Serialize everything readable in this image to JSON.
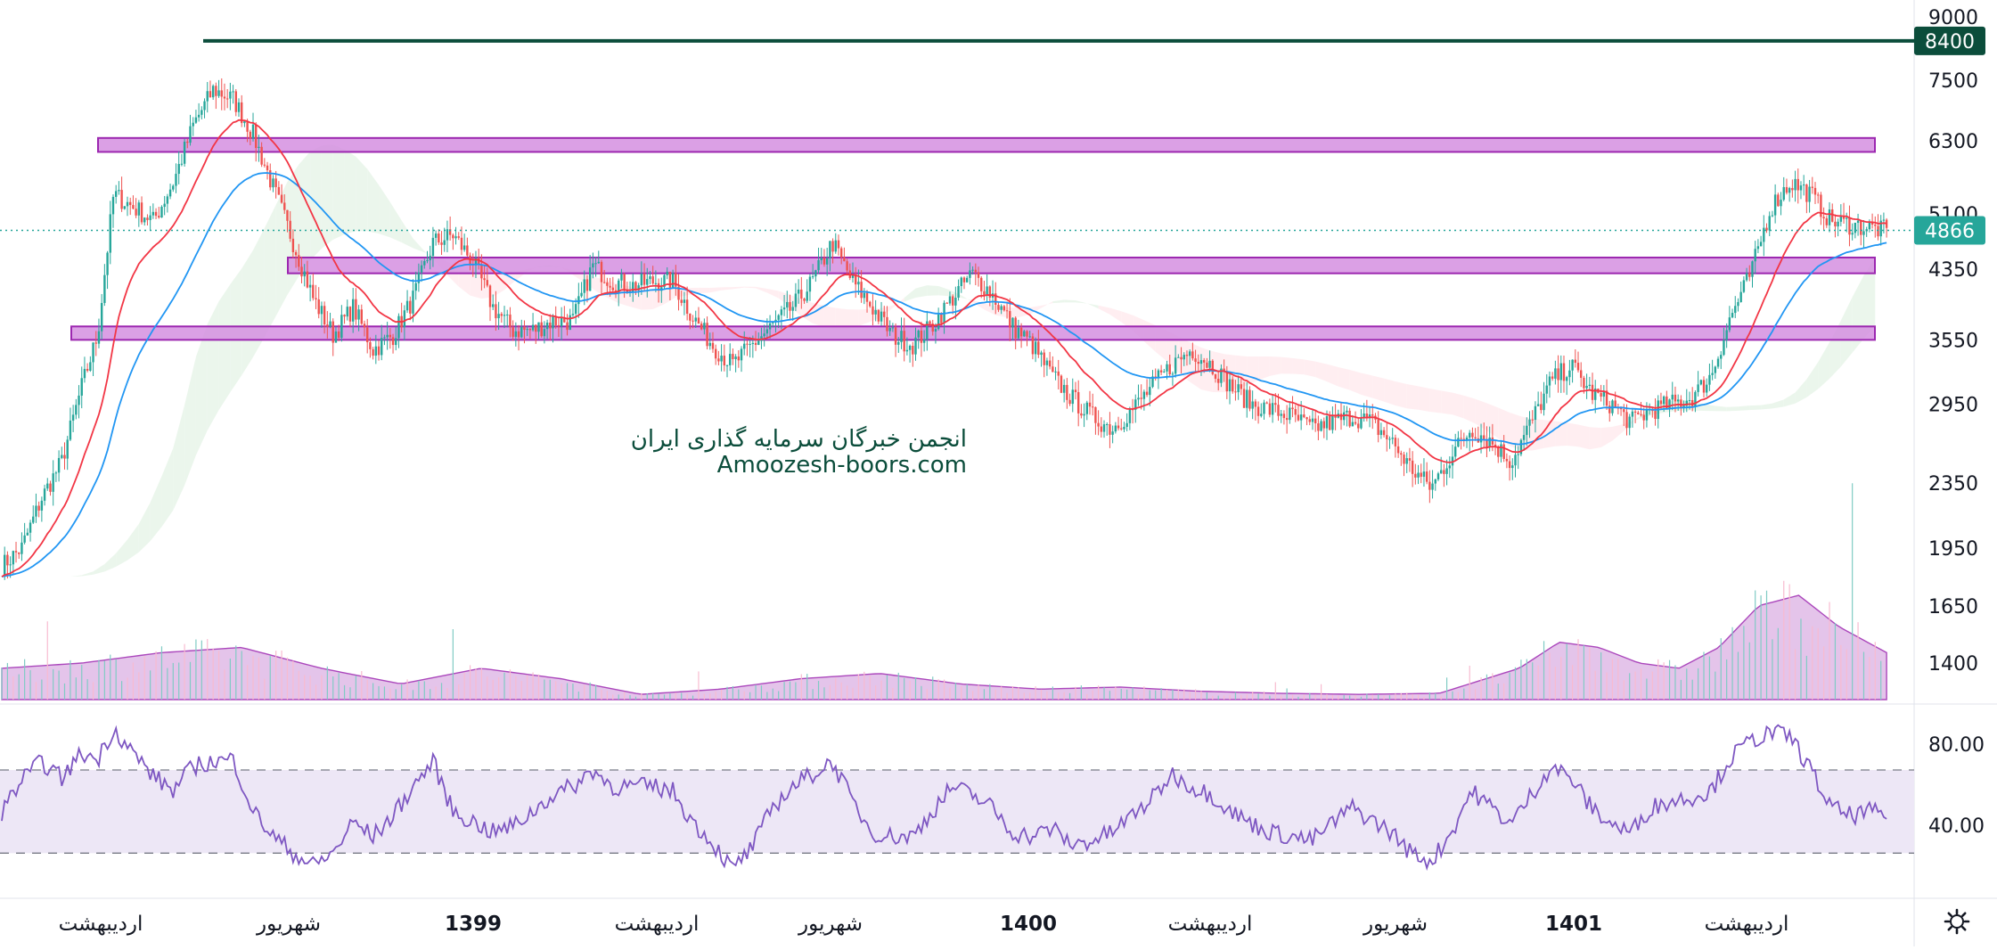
{
  "chart_data": [
    {
      "type": "candlestick",
      "ylim": [
        1250,
        9400
      ],
      "y_scale": "log",
      "y_ticks": [
        "9000",
        "7500",
        "6300",
        "5100",
        "4350",
        "3550",
        "2950",
        "2350",
        "1950",
        "1650",
        "1400"
      ],
      "x_ticks": [
        {
          "label": "اردیبهشت",
          "bold": false
        },
        {
          "label": "شهریور",
          "bold": false
        },
        {
          "label": "1399",
          "bold": true
        },
        {
          "label": "اردیبهشت",
          "bold": false
        },
        {
          "label": "شهریور",
          "bold": false
        },
        {
          "label": "1400",
          "bold": true
        },
        {
          "label": "اردیبهشت",
          "bold": false
        },
        {
          "label": "شهریور",
          "bold": false
        },
        {
          "label": "1401",
          "bold": true
        },
        {
          "label": "اردیبهشت",
          "bold": false
        }
      ],
      "last_price": "4866",
      "resistance_line": {
        "value": 8400,
        "label": "8400"
      },
      "zones": [
        {
          "low": 6100,
          "high": 6350
        },
        {
          "low": 4300,
          "high": 4500
        },
        {
          "low": 3550,
          "high": 3690
        }
      ],
      "close_path": [
        [
          0,
          1850
        ],
        [
          0.5,
          1950
        ],
        [
          1,
          2250
        ],
        [
          1.5,
          2500
        ],
        [
          2,
          3100
        ],
        [
          2.4,
          3600
        ],
        [
          2.8,
          5400
        ],
        [
          3.3,
          5200
        ],
        [
          3.8,
          5000
        ],
        [
          4.3,
          5600
        ],
        [
          4.8,
          6600
        ],
        [
          5.3,
          7300
        ],
        [
          5.8,
          7100
        ],
        [
          6.3,
          6400
        ],
        [
          6.8,
          5500
        ],
        [
          7.3,
          4700
        ],
        [
          7.8,
          4000
        ],
        [
          8.3,
          3600
        ],
        [
          8.8,
          3900
        ],
        [
          9.3,
          3450
        ],
        [
          9.8,
          3600
        ],
        [
          10.3,
          4000
        ],
        [
          10.8,
          4700
        ],
        [
          11.3,
          4800
        ],
        [
          11.8,
          4450
        ],
        [
          12.3,
          3900
        ],
        [
          12.8,
          3650
        ],
        [
          13.3,
          3650
        ],
        [
          13.8,
          3750
        ],
        [
          14.3,
          3750
        ],
        [
          14.8,
          4400
        ],
        [
          15.3,
          4200
        ],
        [
          15.8,
          4150
        ],
        [
          16.3,
          4200
        ],
        [
          16.8,
          4200
        ],
        [
          17.3,
          3800
        ],
        [
          17.8,
          3500
        ],
        [
          18.3,
          3300
        ],
        [
          18.8,
          3500
        ],
        [
          19.3,
          3700
        ],
        [
          19.8,
          3900
        ],
        [
          20.3,
          4200
        ],
        [
          20.8,
          4700
        ],
        [
          21.3,
          4200
        ],
        [
          21.8,
          3900
        ],
        [
          22.3,
          3600
        ],
        [
          22.8,
          3500
        ],
        [
          23.3,
          3700
        ],
        [
          23.8,
          4000
        ],
        [
          24.3,
          4300
        ],
        [
          24.8,
          4050
        ],
        [
          25.3,
          3700
        ],
        [
          25.8,
          3500
        ],
        [
          26.3,
          3200
        ],
        [
          26.8,
          3000
        ],
        [
          27.3,
          2850
        ],
        [
          27.8,
          2750
        ],
        [
          28.3,
          2900
        ],
        [
          28.8,
          3100
        ],
        [
          29.3,
          3300
        ],
        [
          29.8,
          3450
        ],
        [
          30.3,
          3300
        ],
        [
          30.8,
          3100
        ],
        [
          31.3,
          2950
        ],
        [
          31.8,
          2900
        ],
        [
          32.3,
          2850
        ],
        [
          32.8,
          2750
        ],
        [
          33.3,
          2800
        ],
        [
          33.8,
          2850
        ],
        [
          34.3,
          2800
        ],
        [
          34.8,
          2650
        ],
        [
          35.3,
          2450
        ],
        [
          35.8,
          2320
        ],
        [
          36.3,
          2550
        ],
        [
          36.8,
          2750
        ],
        [
          37.3,
          2650
        ],
        [
          37.8,
          2500
        ],
        [
          38.3,
          2800
        ],
        [
          38.8,
          3150
        ],
        [
          39.3,
          3300
        ],
        [
          39.8,
          3050
        ],
        [
          40.3,
          2950
        ],
        [
          40.8,
          2800
        ],
        [
          41.3,
          2900
        ],
        [
          41.8,
          2950
        ],
        [
          42.3,
          3000
        ],
        [
          42.8,
          3200
        ],
        [
          43.3,
          3800
        ],
        [
          43.8,
          4300
        ],
        [
          44.3,
          5200
        ],
        [
          44.8,
          5600
        ],
        [
          45.3,
          5400
        ],
        [
          45.8,
          5000
        ],
        [
          46.3,
          4950
        ],
        [
          46.8,
          4900
        ],
        [
          47.2,
          4866
        ]
      ],
      "rsi": {
        "upper": "80.00",
        "lower": "40.00",
        "band": [
          30,
          70
        ],
        "series": [
          [
            0,
            50
          ],
          [
            0.5,
            65
          ],
          [
            1,
            74
          ],
          [
            1.5,
            66
          ],
          [
            2,
            78
          ],
          [
            2.4,
            75
          ],
          [
            2.8,
            90
          ],
          [
            3.3,
            78
          ],
          [
            3.8,
            67
          ],
          [
            4.3,
            60
          ],
          [
            4.8,
            72
          ],
          [
            5.3,
            74
          ],
          [
            5.8,
            75
          ],
          [
            6.3,
            50
          ],
          [
            6.8,
            38
          ],
          [
            7.3,
            30
          ],
          [
            7.8,
            24
          ],
          [
            8.3,
            30
          ],
          [
            8.8,
            45
          ],
          [
            9.3,
            38
          ],
          [
            9.8,
            48
          ],
          [
            10.3,
            62
          ],
          [
            10.8,
            74
          ],
          [
            11.3,
            50
          ],
          [
            11.8,
            45
          ],
          [
            12.3,
            40
          ],
          [
            12.8,
            43
          ],
          [
            13.3,
            50
          ],
          [
            13.8,
            58
          ],
          [
            14.3,
            62
          ],
          [
            14.8,
            70
          ],
          [
            15.3,
            62
          ],
          [
            15.8,
            62
          ],
          [
            16.3,
            62
          ],
          [
            16.8,
            60
          ],
          [
            17.3,
            45
          ],
          [
            17.8,
            35
          ],
          [
            18.3,
            22
          ],
          [
            18.8,
            33
          ],
          [
            19.3,
            52
          ],
          [
            19.8,
            62
          ],
          [
            20.3,
            68
          ],
          [
            20.8,
            74
          ],
          [
            21.3,
            55
          ],
          [
            21.8,
            40
          ],
          [
            22.3,
            38
          ],
          [
            22.8,
            38
          ],
          [
            23.3,
            50
          ],
          [
            23.8,
            62
          ],
          [
            24.3,
            58
          ],
          [
            24.8,
            52
          ],
          [
            25.3,
            40
          ],
          [
            25.8,
            38
          ],
          [
            26.3,
            42
          ],
          [
            26.8,
            34
          ],
          [
            27.3,
            36
          ],
          [
            27.8,
            40
          ],
          [
            28.3,
            48
          ],
          [
            28.8,
            56
          ],
          [
            29.3,
            68
          ],
          [
            29.8,
            62
          ],
          [
            30.3,
            58
          ],
          [
            30.8,
            50
          ],
          [
            31.3,
            44
          ],
          [
            31.8,
            40
          ],
          [
            32.3,
            38
          ],
          [
            32.8,
            36
          ],
          [
            33.3,
            44
          ],
          [
            33.8,
            52
          ],
          [
            34.3,
            46
          ],
          [
            34.8,
            40
          ],
          [
            35.3,
            30
          ],
          [
            35.8,
            26
          ],
          [
            36.3,
            40
          ],
          [
            36.8,
            60
          ],
          [
            37.3,
            52
          ],
          [
            37.8,
            44
          ],
          [
            38.3,
            58
          ],
          [
            38.8,
            72
          ],
          [
            39.3,
            66
          ],
          [
            39.8,
            52
          ],
          [
            40.3,
            44
          ],
          [
            40.8,
            40
          ],
          [
            41.3,
            52
          ],
          [
            41.8,
            55
          ],
          [
            42.3,
            57
          ],
          [
            42.8,
            60
          ],
          [
            43.3,
            76
          ],
          [
            43.8,
            84
          ],
          [
            44.3,
            88
          ],
          [
            44.8,
            86
          ],
          [
            45.3,
            70
          ],
          [
            45.8,
            52
          ],
          [
            46.3,
            48
          ],
          [
            46.8,
            50
          ],
          [
            47.2,
            48
          ]
        ]
      },
      "volume_profile": [
        [
          0,
          0.3
        ],
        [
          2,
          0.35
        ],
        [
          4,
          0.45
        ],
        [
          6,
          0.5
        ],
        [
          8,
          0.3
        ],
        [
          10,
          0.15
        ],
        [
          12,
          0.3
        ],
        [
          14,
          0.2
        ],
        [
          16,
          0.05
        ],
        [
          18,
          0.1
        ],
        [
          20,
          0.2
        ],
        [
          22,
          0.25
        ],
        [
          24,
          0.15
        ],
        [
          26,
          0.1
        ],
        [
          28,
          0.12
        ],
        [
          30,
          0.08
        ],
        [
          32,
          0.06
        ],
        [
          34,
          0.05
        ],
        [
          36,
          0.06
        ],
        [
          38,
          0.3
        ],
        [
          39,
          0.55
        ],
        [
          40,
          0.5
        ],
        [
          41,
          0.35
        ],
        [
          42,
          0.3
        ],
        [
          43,
          0.5
        ],
        [
          44,
          0.9
        ],
        [
          45,
          1.0
        ],
        [
          46,
          0.7
        ],
        [
          47.2,
          0.45
        ]
      ],
      "watermark": {
        "line1": "انجمن خبرگان سرمایه گذاری ایران",
        "line2": "Amoozesh-boors.com"
      },
      "colors": {
        "candle_up": "#26a69a",
        "candle_down": "#ef5350",
        "ema_fast": "#f23645",
        "ema_slow": "#2196f3",
        "zone_fill": "#d58fe0",
        "zone_border": "#9c27b0",
        "resistance": "#0b4d3b",
        "last_price_bg": "#26a69a",
        "rsi_line": "#7e57c2",
        "rsi_band": "#ede7f6",
        "volume": "#ce93d8",
        "cloud_up": "#e8f5e9",
        "cloud_down": "#ffebee"
      },
      "settings_icon": "gear-icon"
    }
  ]
}
